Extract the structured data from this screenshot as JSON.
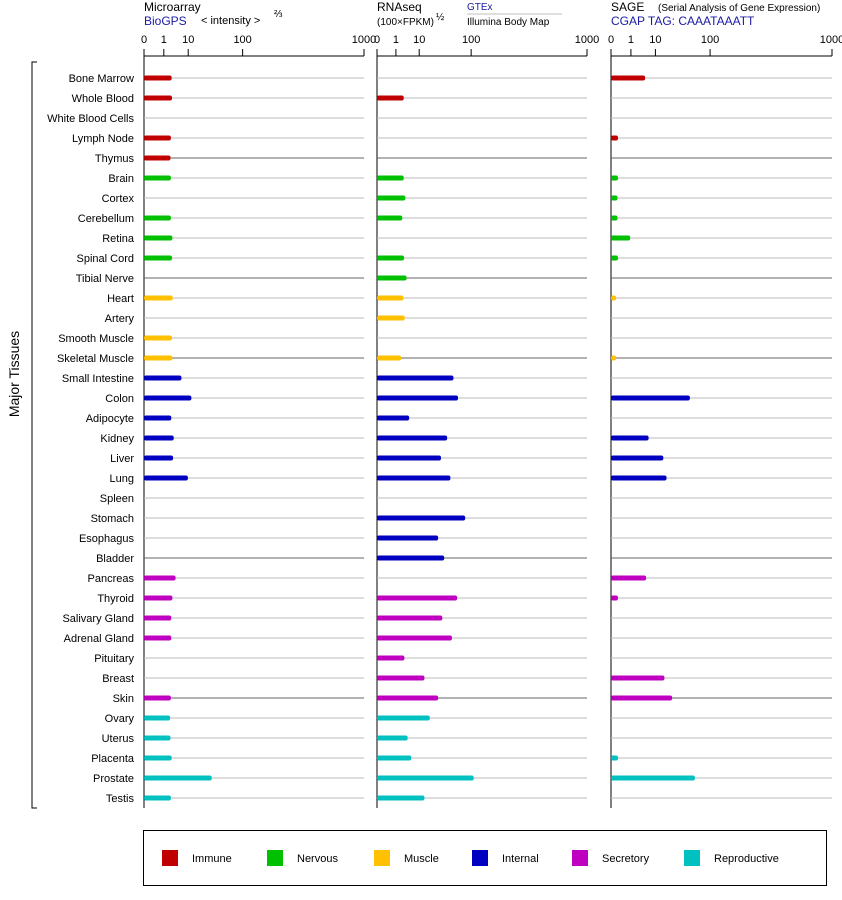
{
  "panels": [
    {
      "title": "Microarray",
      "subtitle": "BioGPS",
      "unit_label": "< intensity >",
      "unit_sup": "⅔",
      "extra_line1": "",
      "extra_line2": ""
    },
    {
      "title": "RNAseq",
      "subtitle": "(100×FPKM)",
      "unit_label": "",
      "unit_sup": "½",
      "extra_line1": "GTEx",
      "extra_line2": "Illumina Body Map"
    },
    {
      "title": "SAGE",
      "subtitle": "CGAP TAG: CAAATAAATT",
      "unit_label": "(Serial Analysis of Gene Expression)",
      "unit_sup": "",
      "extra_line1": "",
      "extra_line2": ""
    }
  ],
  "axis_ticks": [
    "0",
    "1",
    "10",
    "100",
    "1000"
  ],
  "y_group_label": "Major Tissues",
  "legend": [
    {
      "name": "Immune",
      "color": "#c00000"
    },
    {
      "name": "Nervous",
      "color": "#00c000"
    },
    {
      "name": "Muscle",
      "color": "#ffc000"
    },
    {
      "name": "Internal",
      "color": "#0000c0"
    },
    {
      "name": "Secretory",
      "color": "#c000c0"
    },
    {
      "name": "Reproductive",
      "color": "#00c0c0"
    }
  ],
  "chart_data": {
    "type": "bar",
    "orientation": "horizontal",
    "x_scale": "power",
    "xlim": [
      0,
      1000
    ],
    "categories": [
      "Bone Marrow",
      "Whole Blood",
      "White Blood Cells",
      "Lymph Node",
      "Thymus",
      "Brain",
      "Cortex",
      "Cerebellum",
      "Retina",
      "Spinal Cord",
      "Tibial Nerve",
      "Heart",
      "Artery",
      "Smooth Muscle",
      "Skeletal Muscle",
      "Small Intestine",
      "Colon",
      "Adipocyte",
      "Kidney",
      "Liver",
      "Lung",
      "Spleen",
      "Stomach",
      "Esophagus",
      "Bladder",
      "Pancreas",
      "Thyroid",
      "Salivary Gland",
      "Adrenal Gland",
      "Pituitary",
      "Breast",
      "Skin",
      "Ovary",
      "Uterus",
      "Placenta",
      "Prostate",
      "Testis"
    ],
    "category_groups": [
      "Immune",
      "Immune",
      "Immune",
      "Immune",
      "Immune",
      "Nervous",
      "Nervous",
      "Nervous",
      "Nervous",
      "Nervous",
      "Nervous",
      "Muscle",
      "Muscle",
      "Muscle",
      "Muscle",
      "Internal",
      "Internal",
      "Internal",
      "Internal",
      "Internal",
      "Internal",
      "Internal",
      "Internal",
      "Internal",
      "Internal",
      "Secretory",
      "Secretory",
      "Secretory",
      "Secretory",
      "Secretory",
      "Secretory",
      "Secretory",
      "Reproductive",
      "Reproductive",
      "Reproductive",
      "Reproductive",
      "Reproductive"
    ],
    "series": [
      {
        "name": "Microarray",
        "values": [
          2.6,
          2.7,
          null,
          2.4,
          2.3,
          2.4,
          null,
          2.4,
          2.8,
          2.7,
          null,
          2.9,
          null,
          2.7,
          2.8,
          6.2,
          12.2,
          2.5,
          3.2,
          3.0,
          9.8,
          null,
          null,
          null,
          null,
          3.8,
          2.8,
          2.5,
          2.5,
          null,
          null,
          2.4,
          2.2,
          2.3,
          2.6,
          34,
          2.4
        ]
      },
      {
        "name": "RNAseq",
        "values": [
          null,
          2.7,
          null,
          null,
          null,
          2.7,
          3.2,
          2.3,
          null,
          2.8,
          3.6,
          2.6,
          3.0,
          null,
          2.0,
          55,
          65,
          4.6,
          43,
          33,
          49,
          null,
          83,
          29,
          38,
          null,
          63,
          35,
          52,
          2.9,
          14,
          29,
          19,
          4.0,
          5.5,
          108,
          14
        ]
      },
      {
        "name": "SAGE",
        "values": [
          4.7,
          null,
          null,
          0.05,
          null,
          0.05,
          0.04,
          0.04,
          0.9,
          0.05,
          null,
          0.02,
          null,
          null,
          0.02,
          null,
          52,
          null,
          6.2,
          16,
          19,
          null,
          null,
          null,
          null,
          5.1,
          0.05,
          null,
          null,
          null,
          17,
          25,
          null,
          null,
          0.05,
          62,
          null
        ]
      }
    ]
  }
}
